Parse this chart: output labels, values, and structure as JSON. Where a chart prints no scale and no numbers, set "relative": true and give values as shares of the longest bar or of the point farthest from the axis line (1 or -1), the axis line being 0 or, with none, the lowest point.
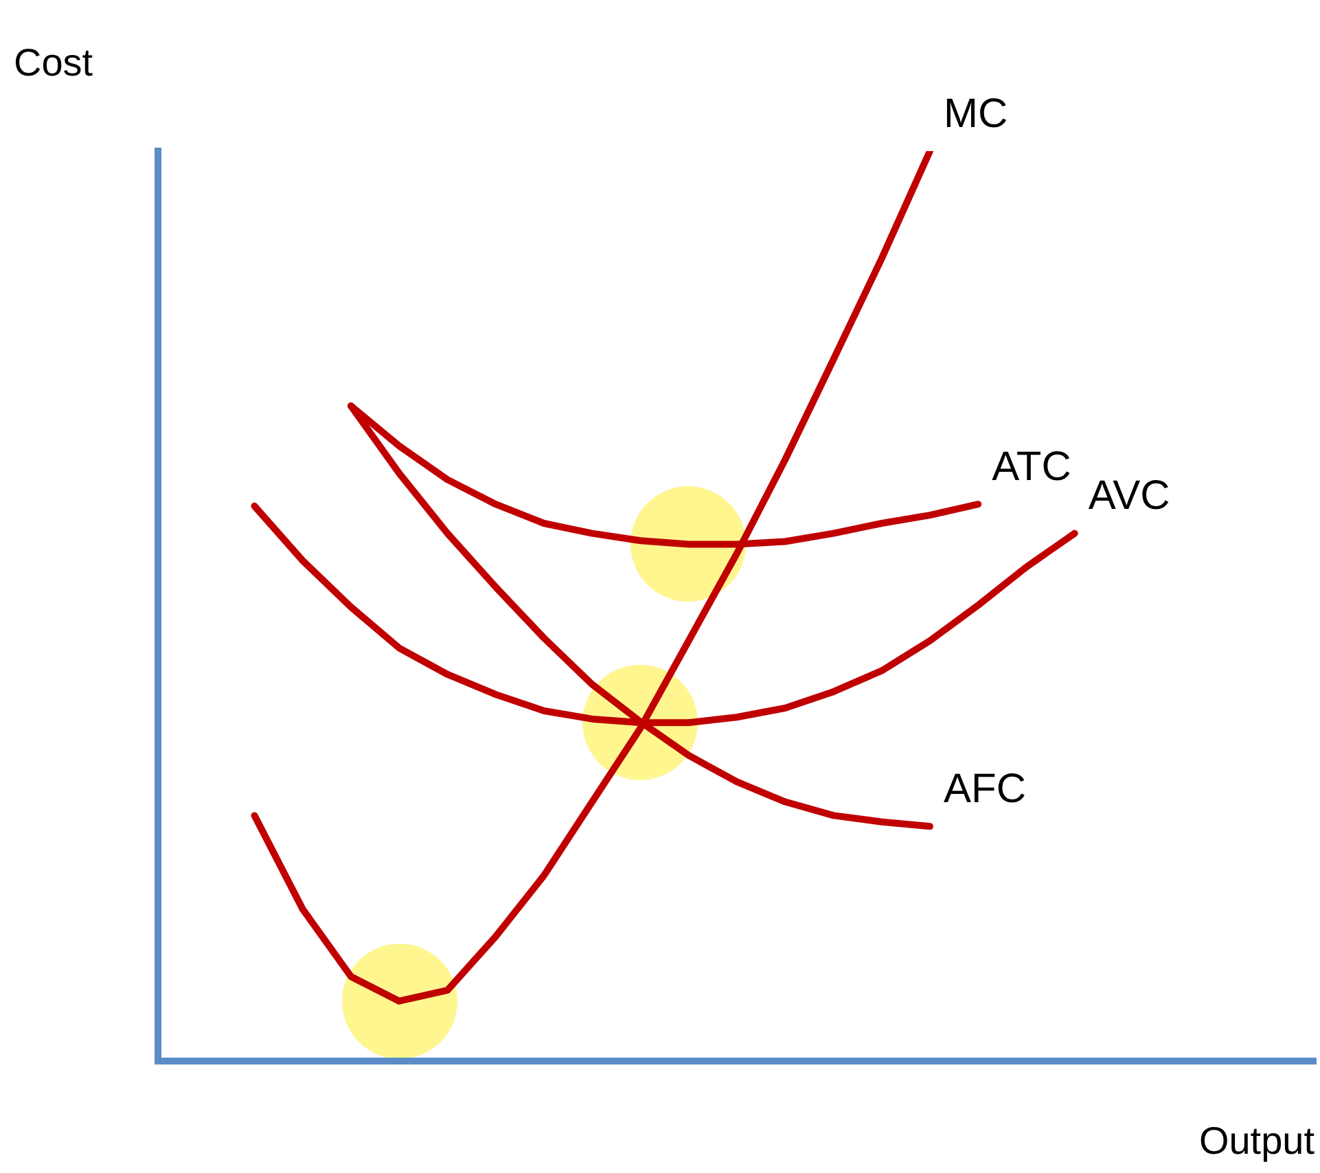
{
  "chart_data": {
    "type": "line",
    "xlabel": "Output",
    "ylabel": "Cost",
    "relative": true,
    "grid": false,
    "legend": false,
    "line_style": "solid",
    "categories": [
      null,
      null,
      null,
      null,
      null,
      null,
      null,
      null,
      null,
      null,
      null,
      null,
      null,
      null,
      null,
      null,
      null,
      null,
      null,
      null,
      null,
      null,
      null,
      null,
      null
    ],
    "series": [
      {
        "name": "MC",
        "color": "#c00000",
        "values": [
          null,
          null,
          0.27,
          0.167,
          0.093,
          0.066,
          0.078,
          0.137,
          0.204,
          0.285,
          0.366,
          0.462,
          0.558,
          0.661,
          0.771,
          0.882,
          1.0,
          null,
          null,
          null,
          null,
          null,
          null,
          null,
          null
        ]
      },
      {
        "name": "ATC",
        "color": "#c00000",
        "values": [
          null,
          null,
          null,
          null,
          0.72,
          0.676,
          0.639,
          0.612,
          0.591,
          0.58,
          0.572,
          0.568,
          0.568,
          0.571,
          0.58,
          0.591,
          0.6,
          0.612,
          null,
          null,
          null,
          null,
          null,
          null,
          null
        ]
      },
      {
        "name": "AVC",
        "color": "#c00000",
        "values": [
          null,
          null,
          0.61,
          0.55,
          0.499,
          0.454,
          0.425,
          0.403,
          0.385,
          0.376,
          0.372,
          0.372,
          0.378,
          0.388,
          0.406,
          0.429,
          0.462,
          0.501,
          0.543,
          0.58,
          null,
          null,
          null,
          null,
          null
        ]
      },
      {
        "name": "AFC",
        "color": "#c00000",
        "values": [
          null,
          null,
          null,
          null,
          0.72,
          0.646,
          0.58,
          0.521,
          0.465,
          0.414,
          0.373,
          0.336,
          0.307,
          0.285,
          0.27,
          0.263,
          0.258,
          null,
          null,
          null,
          null,
          null,
          null,
          null,
          null
        ]
      }
    ]
  }
}
